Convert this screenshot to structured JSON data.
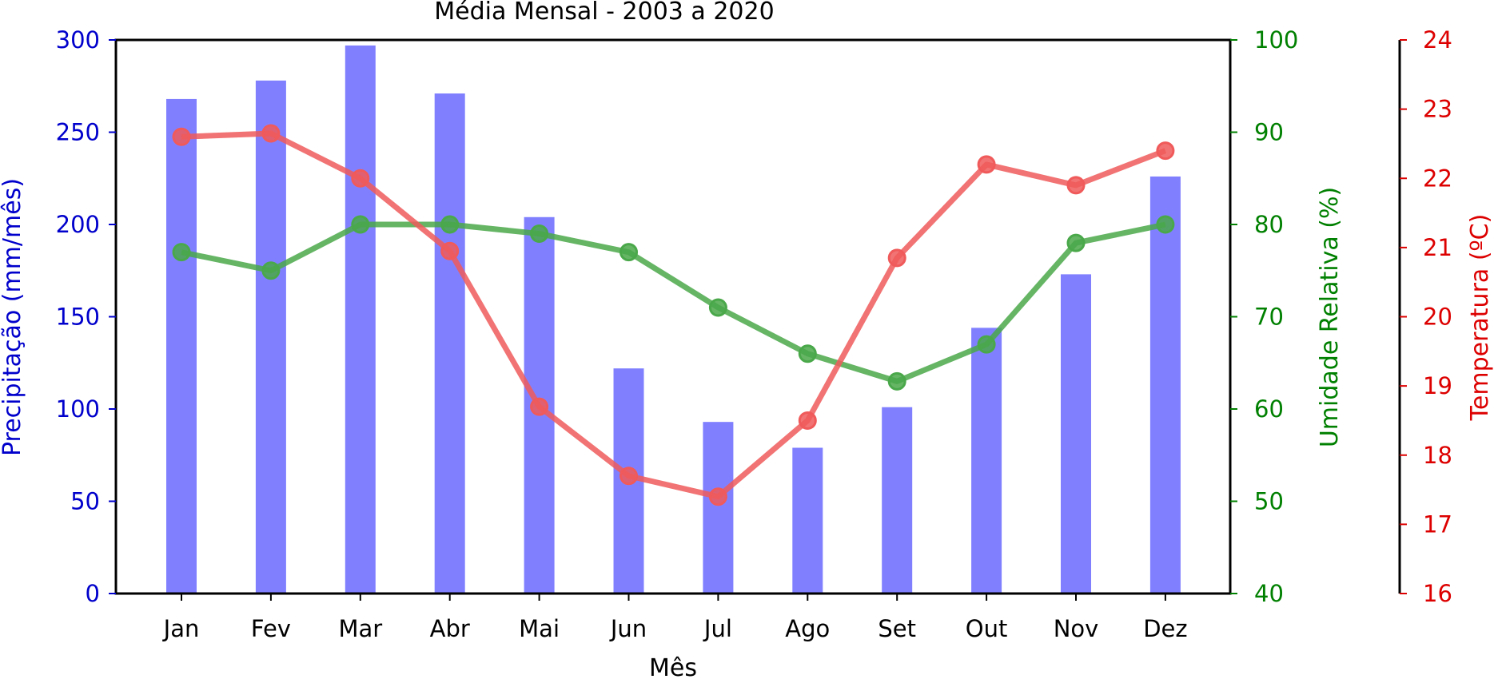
{
  "chart_data": {
    "type": "bar",
    "title": "Média Mensal - 2003 a 2020",
    "xlabel": "Mês",
    "categories": [
      "Jan",
      "Fev",
      "Mar",
      "Abr",
      "Mai",
      "Jun",
      "Jul",
      "Ago",
      "Set",
      "Out",
      "Nov",
      "Dez"
    ],
    "grid": false,
    "axes": {
      "precip": {
        "label": "Precipitação (mm/mês)",
        "ylim": [
          0,
          300
        ],
        "ticks": [
          0,
          50,
          100,
          150,
          200,
          250,
          300
        ],
        "color": "#0000cc"
      },
      "humidity": {
        "label": "Umidade Relativa (%)",
        "ylim": [
          40,
          100
        ],
        "ticks": [
          40,
          50,
          60,
          70,
          80,
          90,
          100
        ],
        "color": "#008000"
      },
      "temperature": {
        "label": "Temperatura (ºC)",
        "ylim": [
          16,
          24
        ],
        "ticks": [
          16,
          17,
          18,
          19,
          20,
          21,
          22,
          23,
          24
        ],
        "color": "#dd0000"
      }
    },
    "series": [
      {
        "type": "bar",
        "axis": "precip",
        "color": "#8080ff",
        "values": [
          268,
          278,
          297,
          271,
          204,
          122,
          93,
          79,
          101,
          144,
          173,
          226
        ]
      },
      {
        "type": "line",
        "axis": "humidity",
        "color": "#4aa84a",
        "values": [
          77,
          75,
          80,
          80,
          79,
          77,
          71,
          66,
          63,
          67,
          78,
          80
        ]
      },
      {
        "type": "line",
        "axis": "temperature",
        "color": "#f05a5a",
        "values": [
          22.6,
          22.65,
          22.0,
          20.95,
          18.7,
          17.7,
          17.4,
          18.5,
          20.85,
          22.2,
          21.9,
          22.4
        ]
      }
    ]
  }
}
